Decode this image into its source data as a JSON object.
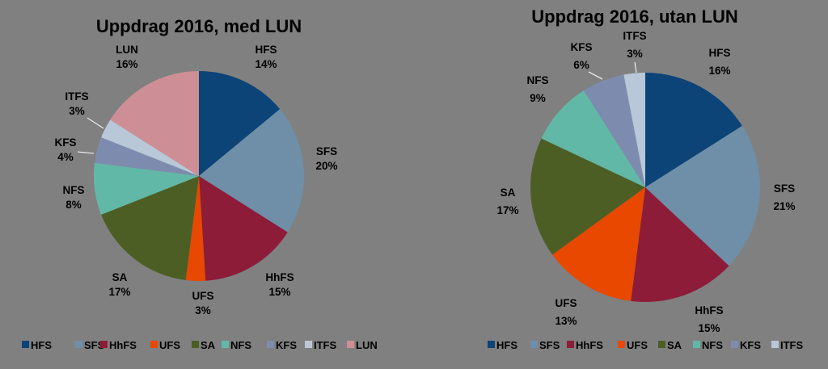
{
  "colors": {
    "HFS": "#0c4478",
    "SFS": "#6f8ea8",
    "HhFS": "#8c1c38",
    "UFS": "#e84800",
    "SA": "#4d5e25",
    "NFS": "#62b8a6",
    "KFS": "#7d8cae",
    "ITFS": "#b9c8d8",
    "LUN": "#cd8f95"
  },
  "chart_data": [
    {
      "type": "pie",
      "title": "Uppdrag 2016, med LUN",
      "labels": [
        "HFS",
        "SFS",
        "HhFS",
        "UFS",
        "SA",
        "NFS",
        "KFS",
        "ITFS",
        "LUN"
      ],
      "values": [
        14,
        20,
        15,
        3,
        17,
        8,
        4,
        3,
        16
      ],
      "value_labels": [
        "14%",
        "20%",
        "15%",
        "3%",
        "17%",
        "8%",
        "4%",
        "3%",
        "16%"
      ],
      "legend": "bottom"
    },
    {
      "type": "pie",
      "title": "Uppdrag 2016, utan LUN",
      "labels": [
        "HFS",
        "SFS",
        "HhFS",
        "UFS",
        "SA",
        "NFS",
        "KFS",
        "ITFS"
      ],
      "values": [
        16,
        21,
        15,
        13,
        17,
        9,
        6,
        3
      ],
      "value_labels": [
        "16%",
        "21%",
        "15%",
        "13%",
        "17%",
        "9%",
        "6%",
        "3%"
      ],
      "legend": "bottom"
    }
  ]
}
